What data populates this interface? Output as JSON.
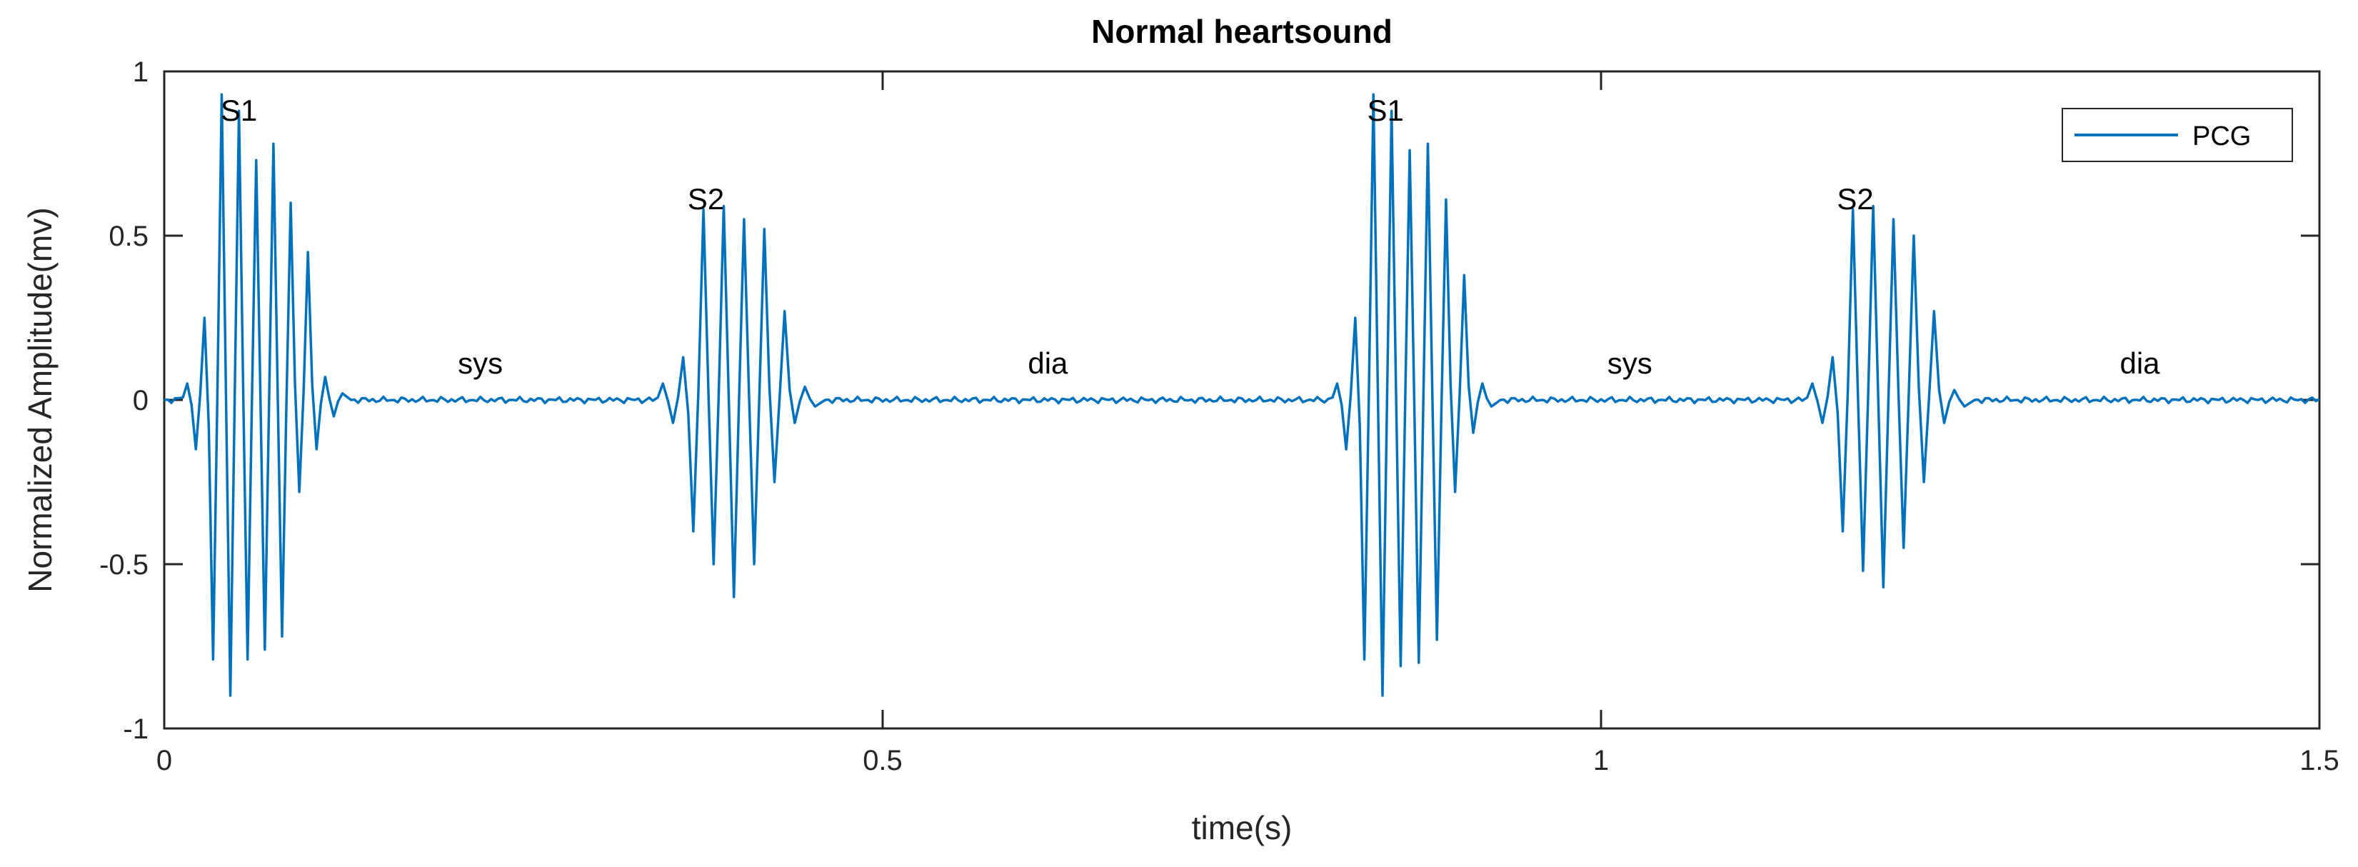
{
  "chart_data": {
    "type": "line",
    "title": "Normal heartsound",
    "xlabel": "time(s)",
    "ylabel": "Normalized Amplitude(mv)",
    "xlim": [
      0,
      1.5
    ],
    "ylim": [
      -1,
      1
    ],
    "xticks": [
      0,
      0.5,
      1,
      1.5
    ],
    "xtick_labels": [
      "0",
      "0.5",
      "1",
      "1.5"
    ],
    "yticks": [
      -1,
      -0.5,
      0,
      0.5,
      1
    ],
    "ytick_labels": [
      "-1",
      "-0.5",
      "0",
      "0.5",
      "1"
    ],
    "grid": false,
    "legend_position": "top-right",
    "series": [
      {
        "name": "PCG",
        "color": "#0072BD",
        "bursts": [
          {
            "start": 0.01,
            "end": 0.13,
            "peaks": [
              0.05,
              -0.15,
              0.25,
              -0.79,
              0.93,
              -0.9,
              0.88,
              -0.79,
              0.73,
              -0.76,
              0.78,
              -0.72,
              0.6,
              -0.28,
              0.45,
              -0.15,
              0.07,
              -0.05,
              0.02
            ]
          },
          {
            "start": 0.34,
            "end": 0.46,
            "peaks": [
              0.05,
              -0.07,
              0.13,
              -0.4,
              0.58,
              -0.5,
              0.59,
              -0.6,
              0.55,
              -0.5,
              0.52,
              -0.25,
              0.27,
              -0.07,
              0.04,
              -0.02
            ]
          },
          {
            "start": 0.81,
            "end": 0.93,
            "peaks": [
              0.05,
              -0.15,
              0.25,
              -0.79,
              0.93,
              -0.9,
              0.88,
              -0.81,
              0.76,
              -0.8,
              0.78,
              -0.73,
              0.61,
              -0.28,
              0.38,
              -0.1,
              0.05,
              -0.02
            ]
          },
          {
            "start": 1.14,
            "end": 1.26,
            "peaks": [
              0.05,
              -0.07,
              0.13,
              -0.4,
              0.58,
              -0.52,
              0.59,
              -0.57,
              0.55,
              -0.45,
              0.5,
              -0.25,
              0.27,
              -0.07,
              0.03,
              -0.02
            ]
          }
        ]
      }
    ],
    "annotations": [
      {
        "text": "S1",
        "x": 0.052,
        "y": 0.85
      },
      {
        "text": "sys",
        "x": 0.22,
        "y": 0.08
      },
      {
        "text": "S2",
        "x": 0.377,
        "y": 0.58
      },
      {
        "text": "dia",
        "x": 0.615,
        "y": 0.08
      },
      {
        "text": "S1",
        "x": 0.85,
        "y": 0.85
      },
      {
        "text": "sys",
        "x": 1.02,
        "y": 0.08
      },
      {
        "text": "S2",
        "x": 1.177,
        "y": 0.58
      },
      {
        "text": "dia",
        "x": 1.375,
        "y": 0.08
      }
    ]
  }
}
